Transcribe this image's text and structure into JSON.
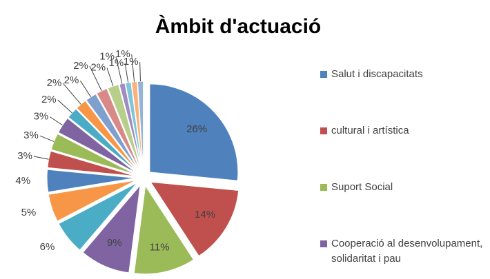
{
  "chart_data": {
    "type": "pie",
    "title": "Àmbit d'actuació",
    "categories": [
      "Salut i discapacitats",
      "cultural i artística",
      "Suport Social",
      "Cooperació al desenvolupament, solidaritat i pau",
      null,
      null,
      null,
      null,
      null,
      null,
      null,
      null,
      null,
      null,
      null,
      null,
      null,
      null,
      null
    ],
    "values": [
      26,
      14,
      11,
      9,
      6,
      5,
      4,
      3,
      3,
      3,
      2,
      2,
      2,
      2,
      2,
      1,
      1,
      1,
      1
    ],
    "value_labels": [
      "26%",
      "14%",
      "11%",
      "9%",
      "6%",
      "5%",
      "4%",
      "3%",
      "3%",
      "3%",
      "2%",
      "2%",
      "2%",
      "2%",
      "2%",
      "1%",
      "1%",
      "1%",
      "1%"
    ],
    "colors": [
      "#4f81bd",
      "#c0504d",
      "#9bbb59",
      "#8064a2",
      "#4bacc6",
      "#f79646",
      "#4f81bd",
      "#c0504d",
      "#9bbb59",
      "#8064a2",
      "#4bacc6",
      "#f79646",
      "#7f9fcf",
      "#d98a88",
      "#b7cf8a",
      "#a08cc0",
      "#7fc6da",
      "#f9b27a",
      "#95b3d7"
    ],
    "legend": "right"
  }
}
